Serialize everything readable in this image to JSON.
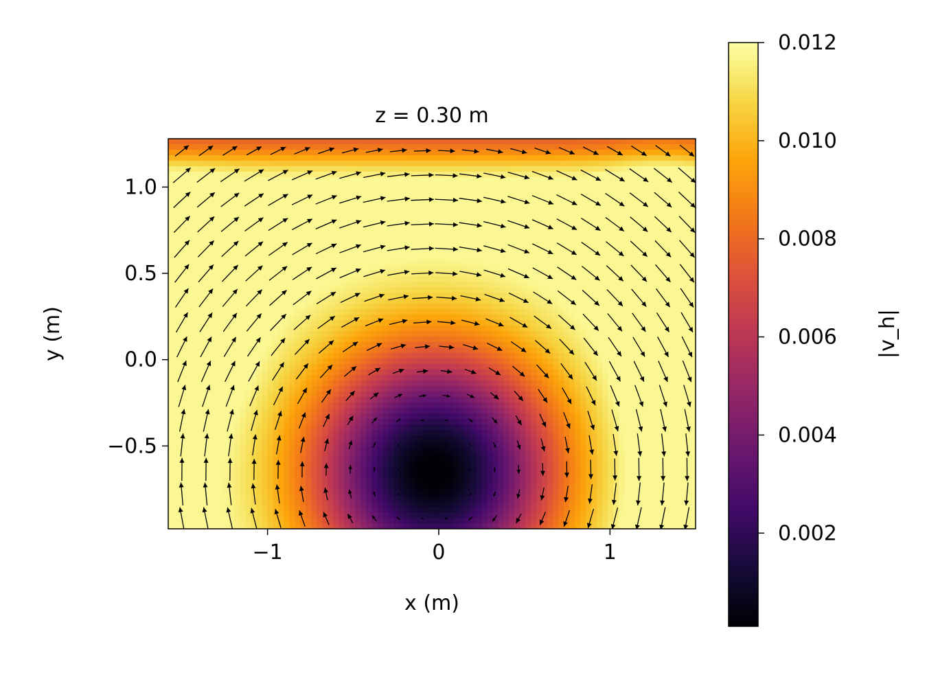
{
  "chart_data": {
    "type": "heatmap",
    "title": "z = 0.30 m",
    "xlabel": "x (m)",
    "ylabel": "y (m)",
    "xlim": [
      -1.58,
      1.5
    ],
    "ylim": [
      -0.98,
      1.28
    ],
    "xticks": [
      {
        "value": -1,
        "label": "−1"
      },
      {
        "value": 0,
        "label": "0"
      },
      {
        "value": 1,
        "label": "1"
      }
    ],
    "yticks": [
      {
        "value": -0.5,
        "label": "−0.5"
      },
      {
        "value": 0.0,
        "label": "0.0"
      },
      {
        "value": 0.5,
        "label": "0.5"
      },
      {
        "value": 1.0,
        "label": "1.0"
      }
    ],
    "colormap": "inferno",
    "overlay": "quiver (horizontal velocity arrows)",
    "vortex_center": [
      -0.03,
      -0.65
    ],
    "colorbar": {
      "label": "|v_h|",
      "range": [
        0.0001,
        0.012
      ],
      "ticks": [
        {
          "value": 0.002,
          "label": "0.002"
        },
        {
          "value": 0.004,
          "label": "0.004"
        },
        {
          "value": 0.006,
          "label": "0.006"
        },
        {
          "value": 0.008,
          "label": "0.008"
        },
        {
          "value": 0.01,
          "label": "0.010"
        },
        {
          "value": 0.012,
          "label": "0.012"
        }
      ]
    }
  }
}
